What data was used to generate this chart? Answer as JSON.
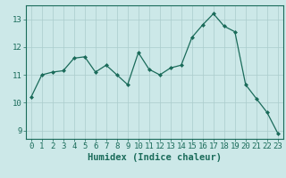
{
  "x": [
    0,
    1,
    2,
    3,
    4,
    5,
    6,
    7,
    8,
    9,
    10,
    11,
    12,
    13,
    14,
    15,
    16,
    17,
    18,
    19,
    20,
    21,
    22,
    23
  ],
  "y": [
    10.2,
    11.0,
    11.1,
    11.15,
    11.6,
    11.65,
    11.1,
    11.35,
    11.0,
    10.65,
    11.8,
    11.2,
    11.0,
    11.25,
    11.35,
    12.35,
    12.8,
    13.2,
    12.75,
    12.55,
    10.65,
    10.15,
    9.65,
    8.9
  ],
  "line_color": "#1a6b5a",
  "marker": "D",
  "marker_size": 2.0,
  "bg_color": "#cce8e8",
  "grid_color": "#aacccc",
  "xlabel": "Humidex (Indice chaleur)",
  "xlim": [
    -0.5,
    23.5
  ],
  "ylim": [
    8.7,
    13.5
  ],
  "yticks": [
    9,
    10,
    11,
    12,
    13
  ],
  "xticks": [
    0,
    1,
    2,
    3,
    4,
    5,
    6,
    7,
    8,
    9,
    10,
    11,
    12,
    13,
    14,
    15,
    16,
    17,
    18,
    19,
    20,
    21,
    22,
    23
  ],
  "tick_color": "#1a6b5a",
  "label_color": "#1a6b5a",
  "spine_color": "#1a6b5a",
  "xlabel_fontsize": 7.5,
  "tick_fontsize": 6.5
}
